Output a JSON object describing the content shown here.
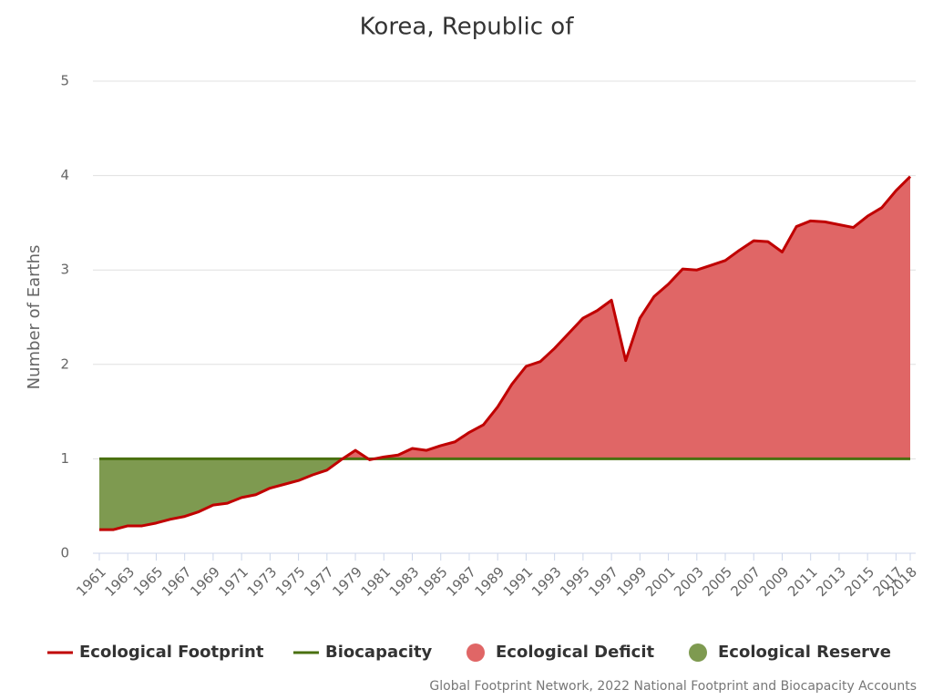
{
  "chart_data": {
    "type": "area-line",
    "title": "Korea, Republic of",
    "y_label": "Number of Earths",
    "source": "Global Footprint Network, 2022 National Footprint and Biocapacity Accounts",
    "x": [
      1961,
      1962,
      1963,
      1964,
      1965,
      1966,
      1967,
      1968,
      1969,
      1970,
      1971,
      1972,
      1973,
      1974,
      1975,
      1976,
      1977,
      1978,
      1979,
      1980,
      1981,
      1982,
      1983,
      1984,
      1985,
      1986,
      1987,
      1988,
      1989,
      1990,
      1991,
      1992,
      1993,
      1994,
      1995,
      1996,
      1997,
      1998,
      1999,
      2000,
      2001,
      2002,
      2003,
      2004,
      2005,
      2006,
      2007,
      2008,
      2009,
      2010,
      2011,
      2012,
      2013,
      2014,
      2015,
      2016,
      2017,
      2018
    ],
    "series": [
      {
        "name": "Ecological Footprint",
        "color": "#c00000",
        "values": [
          0.25,
          0.25,
          0.29,
          0.29,
          0.32,
          0.36,
          0.39,
          0.44,
          0.51,
          0.53,
          0.59,
          0.62,
          0.69,
          0.73,
          0.77,
          0.83,
          0.88,
          0.99,
          1.09,
          0.99,
          1.02,
          1.04,
          1.11,
          1.09,
          1.14,
          1.18,
          1.28,
          1.36,
          1.55,
          1.79,
          1.98,
          2.03,
          2.17,
          2.33,
          2.49,
          2.57,
          2.68,
          2.04,
          2.49,
          2.72,
          2.85,
          3.01,
          3.0,
          3.05,
          3.1,
          3.21,
          3.31,
          3.3,
          3.19,
          3.46,
          3.52,
          3.51,
          3.48,
          3.45,
          3.57,
          3.66,
          3.84,
          3.99
        ]
      },
      {
        "name": "Biocapacity",
        "color": "#4a7010",
        "values": [
          1,
          1,
          1,
          1,
          1,
          1,
          1,
          1,
          1,
          1,
          1,
          1,
          1,
          1,
          1,
          1,
          1,
          1,
          1,
          1,
          1,
          1,
          1,
          1,
          1,
          1,
          1,
          1,
          1,
          1,
          1,
          1,
          1,
          1,
          1,
          1,
          1,
          1,
          1,
          1,
          1,
          1,
          1,
          1,
          1,
          1,
          1,
          1,
          1,
          1,
          1,
          1,
          1,
          1,
          1,
          1,
          1,
          1
        ]
      }
    ],
    "areas": [
      {
        "name": "Ecological Deficit",
        "color": "#e06666"
      },
      {
        "name": "Ecological Reserve",
        "color": "#7e9a50"
      }
    ],
    "xlim": [
      1961,
      2018
    ],
    "xticks": [
      1961,
      1963,
      1965,
      1967,
      1969,
      1971,
      1973,
      1975,
      1977,
      1979,
      1981,
      1983,
      1985,
      1987,
      1989,
      1991,
      1993,
      1995,
      1997,
      1999,
      2001,
      2003,
      2005,
      2007,
      2009,
      2011,
      2013,
      2015,
      2017,
      2018
    ],
    "ylim": [
      0,
      5
    ],
    "yticks": [
      0,
      1,
      2,
      3,
      4,
      5
    ],
    "grid": true
  }
}
